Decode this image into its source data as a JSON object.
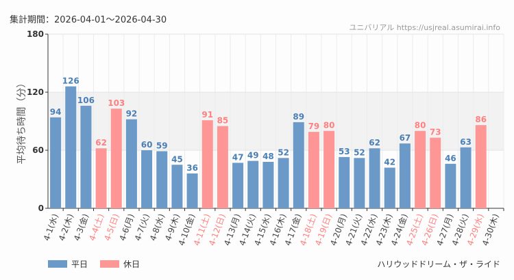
{
  "period_label": "集計期間：2026-04-01〜2026-04-30",
  "credit": "ユニバリアル  https://usjreal.asumirai.info",
  "ride_name": "ハリウッドドリーム・ザ・ライド",
  "colors": {
    "weekday": "#6b9ac8",
    "holiday": "#ff9696",
    "holiday_text": "#ff8080",
    "weekday_text": "#4a7fb5",
    "band": "#f2f2f2"
  },
  "chart_data": {
    "type": "bar",
    "ylabel": "平均待ち時間（分）",
    "ylim": [
      0,
      180
    ],
    "yticks": [
      0,
      60,
      120,
      180
    ],
    "shaded_band": [
      60,
      120
    ],
    "grid": true,
    "legend_position": "bottom-left",
    "categories": [
      "4-1(水)",
      "4-2(木)",
      "4-3(金)",
      "4-4(土)",
      "4-5(日)",
      "4-6(月)",
      "4-7(火)",
      "4-8(水)",
      "4-9(木)",
      "4-10(金)",
      "4-11(土)",
      "4-12(日)",
      "4-13(月)",
      "4-14(火)",
      "4-15(水)",
      "4-16(木)",
      "4-17(金)",
      "4-18(土)",
      "4-19(日)",
      "4-20(月)",
      "4-21(火)",
      "4-22(水)",
      "4-23(木)",
      "4-24(金)",
      "4-25(土)",
      "4-26(日)",
      "4-27(月)",
      "4-28(火)",
      "4-29(水)",
      "4-30(木)"
    ],
    "values": [
      94,
      126,
      106,
      62,
      103,
      92,
      60,
      59,
      45,
      36,
      91,
      85,
      47,
      49,
      48,
      52,
      89,
      79,
      80,
      53,
      52,
      62,
      42,
      67,
      80,
      73,
      46,
      63,
      86,
      null
    ],
    "holiday": [
      false,
      false,
      false,
      true,
      true,
      false,
      false,
      false,
      false,
      false,
      true,
      true,
      false,
      false,
      false,
      false,
      false,
      true,
      true,
      false,
      false,
      false,
      false,
      false,
      true,
      true,
      false,
      false,
      true,
      false
    ],
    "series": [
      {
        "name": "平日"
      },
      {
        "name": "休日"
      }
    ]
  }
}
